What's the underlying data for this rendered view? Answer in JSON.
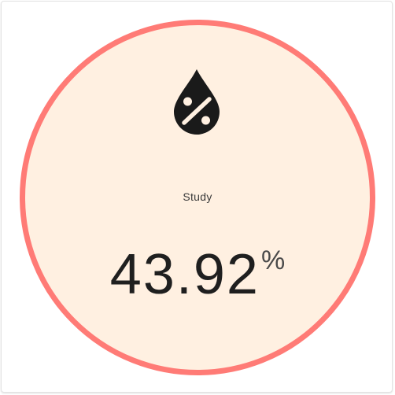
{
  "tile": {
    "icon": "water-percent-icon",
    "label": "Study",
    "value": "43.92",
    "unit": "%",
    "colors": {
      "ring": "#ff7b76",
      "fill": "#fff0e1",
      "icon": "#1a1a1a",
      "text": "#1f1f1f"
    }
  }
}
